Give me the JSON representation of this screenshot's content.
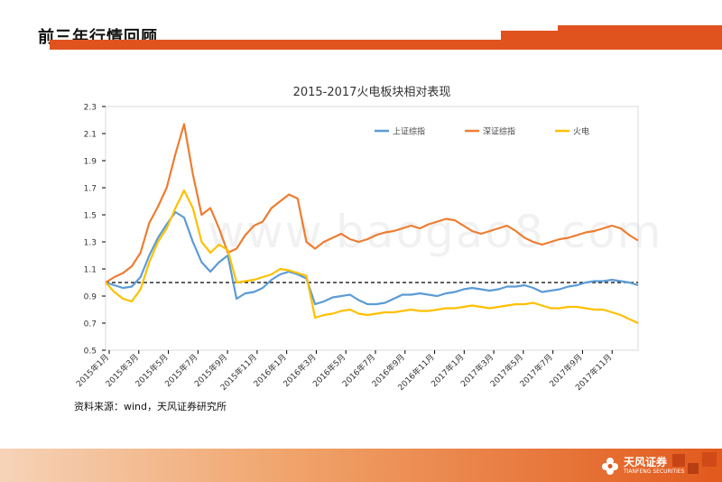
{
  "page": {
    "title": "前三年行情回顾",
    "source": "资料来源：wind，天风证券研究所",
    "watermark": "www.baogao8.com"
  },
  "brand": {
    "name": "天风证券",
    "tagline": "TIANFENG SECURITIES",
    "accent": "#e0531f"
  },
  "chart_data": {
    "type": "line",
    "title": "2015-2017火电板块相对表现",
    "xlabel": "",
    "ylabel": "",
    "ylim": [
      0.5,
      2.3
    ],
    "yticks": [
      0.5,
      0.7,
      0.9,
      1.1,
      1.3,
      1.5,
      1.7,
      1.9,
      2.1,
      2.3
    ],
    "grid": false,
    "legend": "top-right",
    "reference_line": 1.0,
    "x_tick_labels": [
      "2015年1月",
      "2015年3月",
      "2015年5月",
      "2015年7月",
      "2015年9月",
      "2015年11月",
      "2016年1月",
      "2016年3月",
      "2016年5月",
      "2016年7月",
      "2016年9月",
      "2016年11月",
      "2017年1月",
      "2017年3月",
      "2017年5月",
      "2017年7月",
      "2017年9月",
      "2017年11月"
    ],
    "series": [
      {
        "name": "上证综指",
        "color": "#5b9bd5",
        "values": [
          1.0,
          0.98,
          0.96,
          0.97,
          1.04,
          1.2,
          1.33,
          1.43,
          1.52,
          1.48,
          1.3,
          1.15,
          1.08,
          1.15,
          1.2,
          0.88,
          0.92,
          0.93,
          0.96,
          1.02,
          1.06,
          1.08,
          1.06,
          1.03,
          0.84,
          0.86,
          0.89,
          0.9,
          0.91,
          0.87,
          0.84,
          0.84,
          0.85,
          0.88,
          0.91,
          0.91,
          0.92,
          0.91,
          0.9,
          0.92,
          0.93,
          0.95,
          0.96,
          0.95,
          0.94,
          0.95,
          0.97,
          0.97,
          0.98,
          0.96,
          0.93,
          0.94,
          0.95,
          0.97,
          0.98,
          1.0,
          1.01,
          1.01,
          1.02,
          1.01,
          1.0,
          0.98
        ]
      },
      {
        "name": "深证综指",
        "color": "#ed7d31",
        "values": [
          1.0,
          1.04,
          1.07,
          1.12,
          1.22,
          1.44,
          1.56,
          1.7,
          1.95,
          2.17,
          1.8,
          1.5,
          1.55,
          1.4,
          1.22,
          1.25,
          1.35,
          1.42,
          1.45,
          1.55,
          1.6,
          1.65,
          1.62,
          1.3,
          1.25,
          1.3,
          1.33,
          1.36,
          1.32,
          1.3,
          1.32,
          1.35,
          1.37,
          1.38,
          1.4,
          1.42,
          1.4,
          1.43,
          1.45,
          1.47,
          1.46,
          1.42,
          1.38,
          1.36,
          1.38,
          1.4,
          1.42,
          1.38,
          1.33,
          1.3,
          1.28,
          1.3,
          1.32,
          1.33,
          1.35,
          1.37,
          1.38,
          1.4,
          1.42,
          1.4,
          1.35,
          1.31
        ]
      },
      {
        "name": "火电",
        "color": "#ffc000",
        "values": [
          1.0,
          0.93,
          0.88,
          0.86,
          0.95,
          1.15,
          1.3,
          1.4,
          1.55,
          1.68,
          1.55,
          1.3,
          1.22,
          1.28,
          1.24,
          1.0,
          1.01,
          1.02,
          1.04,
          1.06,
          1.1,
          1.09,
          1.07,
          1.05,
          0.74,
          0.76,
          0.77,
          0.79,
          0.8,
          0.77,
          0.76,
          0.77,
          0.78,
          0.78,
          0.79,
          0.8,
          0.79,
          0.79,
          0.8,
          0.81,
          0.81,
          0.82,
          0.83,
          0.82,
          0.81,
          0.82,
          0.83,
          0.84,
          0.84,
          0.85,
          0.83,
          0.81,
          0.81,
          0.82,
          0.82,
          0.81,
          0.8,
          0.8,
          0.78,
          0.76,
          0.73,
          0.7
        ]
      }
    ]
  }
}
